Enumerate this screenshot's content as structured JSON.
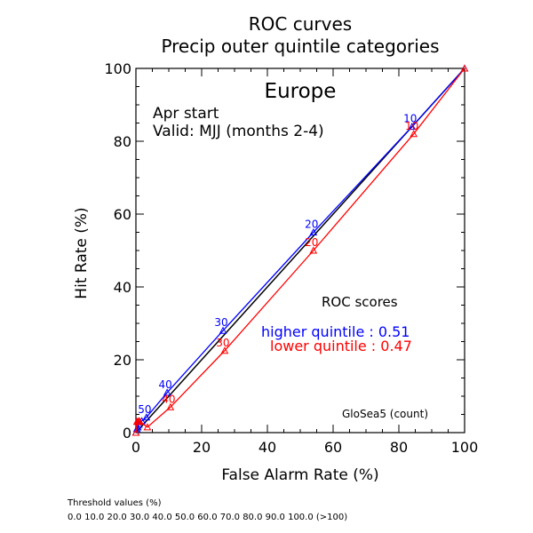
{
  "chart_data": {
    "type": "line",
    "title": "ROC curves",
    "subtitle": "Precip outer quintile categories",
    "region": "Europe",
    "info_lines": [
      "Apr start",
      "Valid: MJJ (months 2-4)"
    ],
    "xlabel": "False Alarm Rate (%)",
    "ylabel": "Hit Rate (%)",
    "xlim": [
      0,
      100
    ],
    "ylim": [
      0,
      100
    ],
    "x_ticks": [
      0,
      20,
      40,
      60,
      80,
      100
    ],
    "y_ticks": [
      0,
      20,
      40,
      60,
      80,
      100
    ],
    "x_tick_labels": [
      "0",
      "20",
      "40",
      "60",
      "80",
      "100"
    ],
    "y_tick_labels": [
      "0",
      "20",
      "40",
      "60",
      "80",
      "100"
    ],
    "grid": false,
    "series": [
      {
        "name": "higher quintile",
        "color": "#0000ff",
        "marker": "triangle",
        "points": [
          {
            "x": 0,
            "y": 0
          },
          {
            "x": 0.3,
            "y": 1.0
          },
          {
            "x": 0.6,
            "y": 1.5
          },
          {
            "x": 0.9,
            "y": 2.2
          },
          {
            "x": 1.8,
            "y": 3.2
          },
          {
            "x": 3.2,
            "y": 4.2,
            "label": "50"
          },
          {
            "x": 9.5,
            "y": 11.0,
            "label": "40"
          },
          {
            "x": 26.5,
            "y": 28.0,
            "label": "30"
          },
          {
            "x": 54.0,
            "y": 55.0,
            "label": "20"
          },
          {
            "x": 84.0,
            "y": 84.0,
            "label": "10"
          },
          {
            "x": 100,
            "y": 100
          }
        ]
      },
      {
        "name": "lower quintile",
        "color": "#ff0000",
        "marker": "triangle",
        "points": [
          {
            "x": 0,
            "y": 0
          },
          {
            "x": 0.3,
            "y": 3.0
          },
          {
            "x": 0.6,
            "y": 3.0
          },
          {
            "x": 0.9,
            "y": 3.2
          },
          {
            "x": 1.2,
            "y": 3.0
          },
          {
            "x": 3.5,
            "y": 1.5
          },
          {
            "x": 10.5,
            "y": 7.0,
            "label": "40"
          },
          {
            "x": 27.0,
            "y": 22.5,
            "label": "30"
          },
          {
            "x": 54.0,
            "y": 50.0,
            "label": "20"
          },
          {
            "x": 84.5,
            "y": 82.0,
            "label": "10"
          },
          {
            "x": 100,
            "y": 100
          }
        ]
      }
    ],
    "reference_line": {
      "from": [
        0,
        0
      ],
      "to": [
        100,
        100
      ],
      "color": "#000000"
    },
    "scores": {
      "heading": "ROC scores",
      "higher_label": "higher quintile : 0.51",
      "lower_label": "lower quintile : 0.47",
      "higher_color": "#0000ff",
      "lower_color": "#ff0000"
    },
    "model_label": "GloSea5 (count)"
  },
  "footer": {
    "threshold_title": "Threshold values (%)",
    "threshold_values": "0.0 10.0 20.0 30.0 40.0 50.0 60.0 70.0 80.0 90.0 100.0 (>100)"
  }
}
